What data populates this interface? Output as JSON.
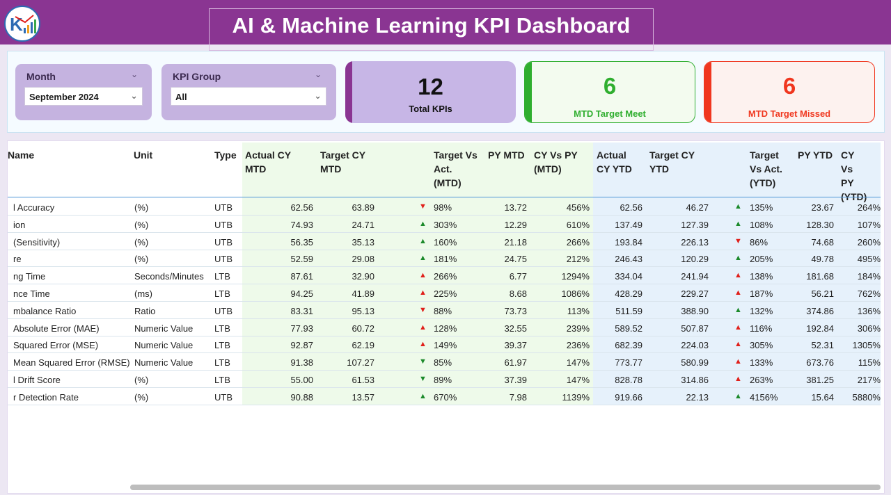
{
  "header": {
    "title": "AI & Machine Learning KPI Dashboard",
    "logo_icon": "kpi-logo-icon"
  },
  "filters": {
    "month": {
      "label": "Month",
      "value": "September 2024"
    },
    "kpi_group": {
      "label": "KPI Group",
      "value": "All"
    }
  },
  "cards": {
    "total": {
      "value": "12",
      "caption": "Total KPIs",
      "color": "#8a3592"
    },
    "meet": {
      "value": "6",
      "caption": "MTD Target Meet",
      "color": "#2fae2f"
    },
    "missed": {
      "value": "6",
      "caption": "MTD Target Missed",
      "color": "#f0371f"
    }
  },
  "table": {
    "headers": {
      "name": "Name",
      "unit": "Unit",
      "type": "Type",
      "actual_mtd": "Actual CY\nMTD",
      "target_mtd": "Target CY\nMTD",
      "tva_mtd": "Target Vs\nAct.\n(MTD)",
      "py_mtd": "PY MTD",
      "cyvpy_mtd": "CY Vs PY\n(MTD)",
      "actual_ytd": "Actual\nCY YTD",
      "target_ytd": "Target CY\nYTD",
      "tva_ytd": "Target\nVs Act.\n(YTD)",
      "py_ytd": "PY YTD",
      "cyvpy_ytd": "CY Vs\nPY\n(YTD)"
    },
    "rows": [
      {
        "name": "l Accuracy",
        "unit": "(%)",
        "type": "UTB",
        "actual_mtd": "62.56",
        "target_mtd": "63.89",
        "mtd_arrow": "down-red",
        "tva_mtd": "98%",
        "py_mtd": "13.72",
        "cyvpy_mtd": "456%",
        "actual_ytd": "62.56",
        "target_ytd": "46.27",
        "ytd_arrow": "up-green",
        "tva_ytd": "135%",
        "py_ytd": "23.67",
        "cyvpy_ytd": "264%"
      },
      {
        "name": "ion",
        "unit": "(%)",
        "type": "UTB",
        "actual_mtd": "74.93",
        "target_mtd": "24.71",
        "mtd_arrow": "up-green",
        "tva_mtd": "303%",
        "py_mtd": "12.29",
        "cyvpy_mtd": "610%",
        "actual_ytd": "137.49",
        "target_ytd": "127.39",
        "ytd_arrow": "up-green",
        "tva_ytd": "108%",
        "py_ytd": "128.30",
        "cyvpy_ytd": "107%"
      },
      {
        "name": "(Sensitivity)",
        "unit": "(%)",
        "type": "UTB",
        "actual_mtd": "56.35",
        "target_mtd": "35.13",
        "mtd_arrow": "up-green",
        "tva_mtd": "160%",
        "py_mtd": "21.18",
        "cyvpy_mtd": "266%",
        "actual_ytd": "193.84",
        "target_ytd": "226.13",
        "ytd_arrow": "down-red",
        "tva_ytd": "86%",
        "py_ytd": "74.68",
        "cyvpy_ytd": "260%"
      },
      {
        "name": "re",
        "unit": "(%)",
        "type": "UTB",
        "actual_mtd": "52.59",
        "target_mtd": "29.08",
        "mtd_arrow": "up-green",
        "tva_mtd": "181%",
        "py_mtd": "24.75",
        "cyvpy_mtd": "212%",
        "actual_ytd": "246.43",
        "target_ytd": "120.29",
        "ytd_arrow": "up-green",
        "tva_ytd": "205%",
        "py_ytd": "49.78",
        "cyvpy_ytd": "495%"
      },
      {
        "name": "ng Time",
        "unit": "Seconds/Minutes",
        "type": "LTB",
        "actual_mtd": "87.61",
        "target_mtd": "32.90",
        "mtd_arrow": "up-red",
        "tva_mtd": "266%",
        "py_mtd": "6.77",
        "cyvpy_mtd": "1294%",
        "actual_ytd": "334.04",
        "target_ytd": "241.94",
        "ytd_arrow": "up-red",
        "tva_ytd": "138%",
        "py_ytd": "181.68",
        "cyvpy_ytd": "184%"
      },
      {
        "name": "nce Time",
        "unit": "(ms)",
        "type": "LTB",
        "actual_mtd": "94.25",
        "target_mtd": "41.89",
        "mtd_arrow": "up-red",
        "tva_mtd": "225%",
        "py_mtd": "8.68",
        "cyvpy_mtd": "1086%",
        "actual_ytd": "428.29",
        "target_ytd": "229.27",
        "ytd_arrow": "up-red",
        "tva_ytd": "187%",
        "py_ytd": "56.21",
        "cyvpy_ytd": "762%"
      },
      {
        "name": "mbalance Ratio",
        "unit": "Ratio",
        "type": "UTB",
        "actual_mtd": "83.31",
        "target_mtd": "95.13",
        "mtd_arrow": "down-red",
        "tva_mtd": "88%",
        "py_mtd": "73.73",
        "cyvpy_mtd": "113%",
        "actual_ytd": "511.59",
        "target_ytd": "388.90",
        "ytd_arrow": "up-green",
        "tva_ytd": "132%",
        "py_ytd": "374.86",
        "cyvpy_ytd": "136%"
      },
      {
        "name": "Absolute Error (MAE)",
        "unit": "Numeric Value",
        "type": "LTB",
        "actual_mtd": "77.93",
        "target_mtd": "60.72",
        "mtd_arrow": "up-red",
        "tva_mtd": "128%",
        "py_mtd": "32.55",
        "cyvpy_mtd": "239%",
        "actual_ytd": "589.52",
        "target_ytd": "507.87",
        "ytd_arrow": "up-red",
        "tva_ytd": "116%",
        "py_ytd": "192.84",
        "cyvpy_ytd": "306%"
      },
      {
        "name": "Squared Error (MSE)",
        "unit": "Numeric Value",
        "type": "LTB",
        "actual_mtd": "92.87",
        "target_mtd": "62.19",
        "mtd_arrow": "up-red",
        "tva_mtd": "149%",
        "py_mtd": "39.37",
        "cyvpy_mtd": "236%",
        "actual_ytd": "682.39",
        "target_ytd": "224.03",
        "ytd_arrow": "up-red",
        "tva_ytd": "305%",
        "py_ytd": "52.31",
        "cyvpy_ytd": "1305%"
      },
      {
        "name": "Mean Squared Error (RMSE)",
        "unit": "Numeric Value",
        "type": "LTB",
        "actual_mtd": "91.38",
        "target_mtd": "107.27",
        "mtd_arrow": "down-green",
        "tva_mtd": "85%",
        "py_mtd": "61.97",
        "cyvpy_mtd": "147%",
        "actual_ytd": "773.77",
        "target_ytd": "580.99",
        "ytd_arrow": "up-red",
        "tva_ytd": "133%",
        "py_ytd": "673.76",
        "cyvpy_ytd": "115%"
      },
      {
        "name": "l Drift Score",
        "unit": "(%)",
        "type": "LTB",
        "actual_mtd": "55.00",
        "target_mtd": "61.53",
        "mtd_arrow": "down-green",
        "tva_mtd": "89%",
        "py_mtd": "37.39",
        "cyvpy_mtd": "147%",
        "actual_ytd": "828.78",
        "target_ytd": "314.86",
        "ytd_arrow": "up-red",
        "tva_ytd": "263%",
        "py_ytd": "381.25",
        "cyvpy_ytd": "217%"
      },
      {
        "name": "r Detection Rate",
        "unit": "(%)",
        "type": "UTB",
        "actual_mtd": "90.88",
        "target_mtd": "13.57",
        "mtd_arrow": "up-green",
        "tva_mtd": "670%",
        "py_mtd": "7.98",
        "cyvpy_mtd": "1139%",
        "actual_ytd": "919.66",
        "target_ytd": "22.13",
        "ytd_arrow": "up-green",
        "tva_ytd": "4156%",
        "py_ytd": "15.64",
        "cyvpy_ytd": "5880%"
      }
    ]
  }
}
